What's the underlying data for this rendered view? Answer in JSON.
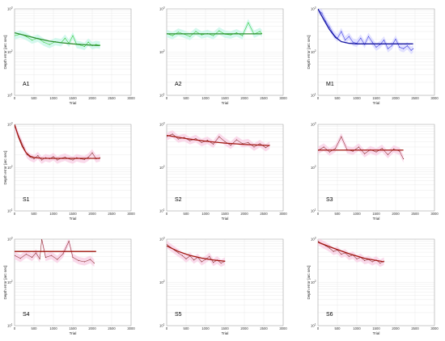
{
  "chart_data": [
    {
      "type": "line",
      "panel_label": "A1",
      "xlabel": "Trial",
      "ylabel": "Depth error [arc sec]",
      "xticks": [
        0,
        500,
        1000,
        1500,
        2000,
        2500,
        3000
      ],
      "xlim": [
        0,
        3000
      ],
      "ylim": [
        10,
        1000
      ],
      "yscale": "log",
      "ytick_labels": [
        "10^1",
        "10^2",
        "10^3"
      ],
      "grid": true,
      "colors": {
        "data": "#2ec82e",
        "band": "#c6f5e8",
        "fit": "#2f8f2f"
      },
      "series": [
        {
          "role": "data",
          "x": [
            0,
            150,
            300,
            450,
            600,
            750,
            900,
            1050,
            1200,
            1300,
            1400,
            1500,
            1600,
            1700,
            1800,
            1900,
            2000,
            2100,
            2200
          ],
          "y": [
            240,
            260,
            230,
            190,
            210,
            170,
            150,
            175,
            165,
            210,
            160,
            240,
            150,
            145,
            135,
            170,
            140,
            150,
            145
          ]
        },
        {
          "role": "fit",
          "x": [
            0,
            300,
            600,
            900,
            1200,
            1500,
            1800,
            2100,
            2200
          ],
          "y": [
            280,
            240,
            205,
            180,
            165,
            155,
            148,
            143,
            142
          ]
        }
      ]
    },
    {
      "type": "line",
      "panel_label": "A2",
      "xlabel": "Trial",
      "ylabel": "",
      "xticks": [
        0,
        500,
        1000,
        1500,
        2000,
        2500,
        3000
      ],
      "xlim": [
        0,
        3000
      ],
      "ylim": [
        10,
        1000
      ],
      "yscale": "log",
      "ytick_labels": [
        "10^1",
        "10^2",
        "10^3"
      ],
      "grid": true,
      "colors": {
        "data": "#2ec82e",
        "band": "#c6f5e8",
        "fit": "#2f8f2f"
      },
      "series": [
        {
          "role": "data",
          "x": [
            0,
            150,
            300,
            450,
            600,
            750,
            900,
            1050,
            1200,
            1350,
            1500,
            1650,
            1800,
            1950,
            2100,
            2250,
            2400,
            2450
          ],
          "y": [
            270,
            240,
            290,
            260,
            230,
            300,
            250,
            270,
            240,
            310,
            260,
            250,
            280,
            240,
            480,
            260,
            300,
            270
          ]
        },
        {
          "role": "fit",
          "x": [
            0,
            2450
          ],
          "y": [
            265,
            265
          ]
        }
      ]
    },
    {
      "type": "line",
      "panel_label": "M1",
      "xlabel": "Trial",
      "ylabel": "Depth error [arc sec]",
      "xticks": [
        0,
        500,
        1000,
        1500,
        2000,
        2500,
        3000
      ],
      "xlim": [
        0,
        3000
      ],
      "ylim": [
        10,
        1000
      ],
      "yscale": "log",
      "ytick_labels": [
        "10^1",
        "10^2",
        "10^3"
      ],
      "grid": true,
      "colors": {
        "data": "#3a3ae0",
        "band": "#d8d8ff",
        "fit": "#1515a0"
      },
      "series": [
        {
          "role": "data",
          "x": [
            0,
            100,
            200,
            300,
            400,
            500,
            600,
            700,
            800,
            900,
            1000,
            1100,
            1200,
            1300,
            1400,
            1500,
            1600,
            1700,
            1800,
            1900,
            2000,
            2100,
            2200,
            2300,
            2400,
            2450
          ],
          "y": [
            950,
            800,
            520,
            380,
            260,
            210,
            300,
            190,
            230,
            170,
            160,
            210,
            150,
            230,
            170,
            130,
            150,
            190,
            120,
            140,
            200,
            130,
            120,
            140,
            110,
            120
          ]
        },
        {
          "role": "fit",
          "x": [
            0,
            150,
            300,
            450,
            600,
            800,
            1000,
            1400,
            2000,
            2450
          ],
          "y": [
            1000,
            560,
            330,
            220,
            175,
            160,
            155,
            155,
            155,
            155
          ]
        }
      ]
    },
    {
      "type": "line",
      "panel_label": "S1",
      "xlabel": "Trial",
      "ylabel": "Depth error [arc sec]",
      "xticks": [
        0,
        500,
        1000,
        1500,
        2000,
        2500,
        3000
      ],
      "xlim": [
        0,
        3000
      ],
      "ylim": [
        10,
        1000
      ],
      "yscale": "log",
      "ytick_labels": [
        "10^1",
        "10^2",
        "10^3"
      ],
      "grid": true,
      "colors": {
        "data": "#8b2e2e",
        "band": "#f8cde4",
        "fit": "#a0160e"
      },
      "series": [
        {
          "role": "data",
          "x": [
            0,
            80,
            160,
            240,
            320,
            400,
            500,
            600,
            700,
            800,
            900,
            1000,
            1100,
            1200,
            1300,
            1400,
            1500,
            1600,
            1700,
            1800,
            1900,
            2000,
            2100,
            2200
          ],
          "y": [
            900,
            620,
            420,
            290,
            200,
            175,
            160,
            190,
            150,
            170,
            160,
            180,
            150,
            165,
            175,
            160,
            150,
            170,
            160,
            155,
            175,
            220,
            160,
            170
          ]
        },
        {
          "role": "fit",
          "x": [
            0,
            100,
            200,
            300,
            400,
            500,
            700,
            1000,
            1500,
            2200
          ],
          "y": [
            1000,
            520,
            310,
            220,
            185,
            172,
            165,
            164,
            164,
            164
          ]
        }
      ]
    },
    {
      "type": "line",
      "panel_label": "S2",
      "xlabel": "Trial",
      "ylabel": "",
      "xticks": [
        0,
        500,
        1000,
        1500,
        2000,
        2500,
        3000
      ],
      "xlim": [
        0,
        3000
      ],
      "ylim": [
        10,
        1000
      ],
      "yscale": "log",
      "ytick_labels": [
        "10^1",
        "10^2",
        "10^3"
      ],
      "grid": true,
      "colors": {
        "data": "#8b2e2e",
        "band": "#f8cde4",
        "fit": "#a0160e"
      },
      "series": [
        {
          "role": "data",
          "x": [
            0,
            150,
            300,
            450,
            600,
            750,
            900,
            1050,
            1200,
            1350,
            1500,
            1650,
            1800,
            1950,
            2100,
            2250,
            2400,
            2550,
            2650
          ],
          "y": [
            520,
            600,
            460,
            500,
            420,
            470,
            380,
            430,
            350,
            520,
            400,
            330,
            440,
            360,
            380,
            300,
            360,
            290,
            330
          ]
        },
        {
          "role": "fit",
          "x": [
            0,
            500,
            1000,
            1500,
            2000,
            2650
          ],
          "y": [
            560,
            470,
            410,
            370,
            345,
            325
          ]
        }
      ]
    },
    {
      "type": "line",
      "panel_label": "S3",
      "xlabel": "Trial",
      "ylabel": "",
      "xticks": [
        0,
        500,
        1000,
        1500,
        2000,
        2500,
        3000
      ],
      "xlim": [
        0,
        3000
      ],
      "ylim": [
        10,
        1000
      ],
      "yscale": "log",
      "ytick_labels": [
        "10^1",
        "10^2",
        "10^3"
      ],
      "grid": true,
      "colors": {
        "data": "#8b2e2e",
        "band": "#f8cde4",
        "fit": "#a0160e"
      },
      "series": [
        {
          "role": "data",
          "x": [
            0,
            150,
            300,
            450,
            600,
            750,
            900,
            1050,
            1200,
            1350,
            1500,
            1650,
            1800,
            1950,
            2100,
            2200
          ],
          "y": [
            250,
            300,
            230,
            280,
            520,
            260,
            240,
            300,
            210,
            260,
            230,
            280,
            200,
            270,
            240,
            160
          ]
        },
        {
          "role": "fit",
          "x": [
            0,
            2200
          ],
          "y": [
            255,
            255
          ]
        }
      ]
    },
    {
      "type": "line",
      "panel_label": "S4",
      "xlabel": "Trial",
      "ylabel": "Depth error [arc sec]",
      "xticks": [
        0,
        500,
        1000,
        1500,
        2000,
        2500,
        3000
      ],
      "xlim": [
        0,
        3000
      ],
      "ylim": [
        10,
        1000
      ],
      "yscale": "log",
      "ytick_labels": [
        "10^1",
        "10^2",
        "10^3"
      ],
      "grid": true,
      "colors": {
        "data": "#8b2e2e",
        "band": "#f8cde4",
        "fit": "#a0160e"
      },
      "series": [
        {
          "role": "data",
          "x": [
            0,
            150,
            300,
            450,
            550,
            650,
            700,
            800,
            950,
            1100,
            1250,
            1400,
            1500,
            1650,
            1800,
            1950,
            2050
          ],
          "y": [
            420,
            360,
            450,
            380,
            480,
            350,
            1000,
            380,
            420,
            340,
            460,
            900,
            380,
            320,
            300,
            340,
            280
          ]
        },
        {
          "role": "fit",
          "x": [
            0,
            2100
          ],
          "y": [
            520,
            520
          ]
        }
      ]
    },
    {
      "type": "line",
      "panel_label": "S5",
      "xlabel": "Trial",
      "ylabel": "",
      "xticks": [
        0,
        500,
        1000,
        1500,
        2000,
        2500,
        3000
      ],
      "xlim": [
        0,
        3000
      ],
      "ylim": [
        10,
        1000
      ],
      "yscale": "log",
      "ytick_labels": [
        "10^1",
        "10^2",
        "10^3"
      ],
      "grid": true,
      "colors": {
        "data": "#8b2e2e",
        "band": "#f8cde4",
        "fit": "#a0160e"
      },
      "series": [
        {
          "role": "data",
          "x": [
            0,
            100,
            200,
            300,
            400,
            500,
            600,
            700,
            800,
            900,
            1000,
            1100,
            1200,
            1300,
            1400,
            1500
          ],
          "y": [
            760,
            650,
            560,
            480,
            420,
            350,
            410,
            330,
            380,
            300,
            340,
            400,
            290,
            330,
            280,
            310
          ]
        },
        {
          "role": "fit",
          "x": [
            0,
            300,
            600,
            900,
            1200,
            1500
          ],
          "y": [
            700,
            520,
            420,
            365,
            330,
            310
          ]
        }
      ]
    },
    {
      "type": "line",
      "panel_label": "S6",
      "xlabel": "Trial",
      "ylabel": "Depth error [arc sec]",
      "xticks": [
        0,
        500,
        1000,
        1500,
        2000,
        2500,
        3000
      ],
      "xlim": [
        0,
        3000
      ],
      "ylim": [
        10,
        1000
      ],
      "yscale": "log",
      "ytick_labels": [
        "10^1",
        "10^2",
        "10^3"
      ],
      "grid": true,
      "colors": {
        "data": "#8b2e2e",
        "band": "#f8cde4",
        "fit": "#a0160e"
      },
      "series": [
        {
          "role": "data",
          "x": [
            0,
            100,
            200,
            300,
            400,
            500,
            600,
            700,
            800,
            900,
            1000,
            1100,
            1200,
            1300,
            1400,
            1500,
            1600,
            1700
          ],
          "y": [
            900,
            780,
            700,
            620,
            520,
            560,
            450,
            480,
            400,
            430,
            350,
            380,
            320,
            340,
            300,
            330,
            280,
            310
          ]
        },
        {
          "role": "fit",
          "x": [
            0,
            400,
            800,
            1200,
            1700
          ],
          "y": [
            850,
            620,
            460,
            360,
            300
          ]
        }
      ]
    }
  ]
}
